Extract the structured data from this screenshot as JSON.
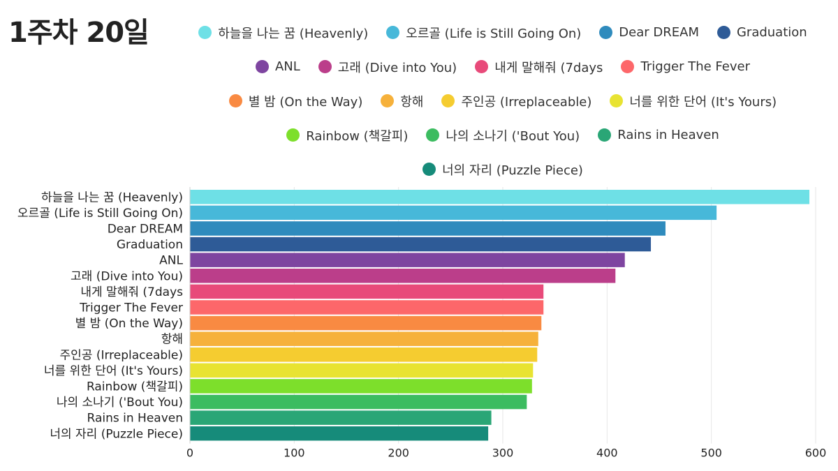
{
  "chart_data": {
    "type": "bar",
    "orientation": "horizontal",
    "title": "1주차 20일",
    "xlabel": "",
    "ylabel": "",
    "xlim": [
      0,
      600
    ],
    "xticks": [
      0,
      100,
      200,
      300,
      400,
      500,
      600
    ],
    "grid": true,
    "legend_position": "top",
    "categories": [
      "하늘을 나는 꿈 (Heavenly)",
      "오르골 (Life is Still Going On)",
      "Dear DREAM",
      "Graduation",
      "ANL",
      "고래 (Dive into You)",
      "내게 말해줘 (7days",
      "Trigger The Fever",
      "별 밤 (On the Way)",
      "항해",
      "주인공 (Irreplaceable)",
      "너를 위한 단어 (It's Yours)",
      "Rainbow (책갈피)",
      "나의 소나기 ('Bout You)",
      "Rains in Heaven",
      "너의 자리 (Puzzle Piece)"
    ],
    "values": [
      594,
      505,
      456,
      442,
      417,
      408,
      339,
      339,
      337,
      334,
      333,
      329,
      328,
      323,
      289,
      286
    ],
    "colors": [
      "#6ee0e6",
      "#47b8d9",
      "#2f8bbd",
      "#2e5b97",
      "#7e45a0",
      "#bb3e8a",
      "#e84a7a",
      "#fd676a",
      "#f98a42",
      "#f6b13b",
      "#f5cc30",
      "#e8e332",
      "#7ddf2b",
      "#3cbc60",
      "#2aa676",
      "#168b7a"
    ]
  }
}
